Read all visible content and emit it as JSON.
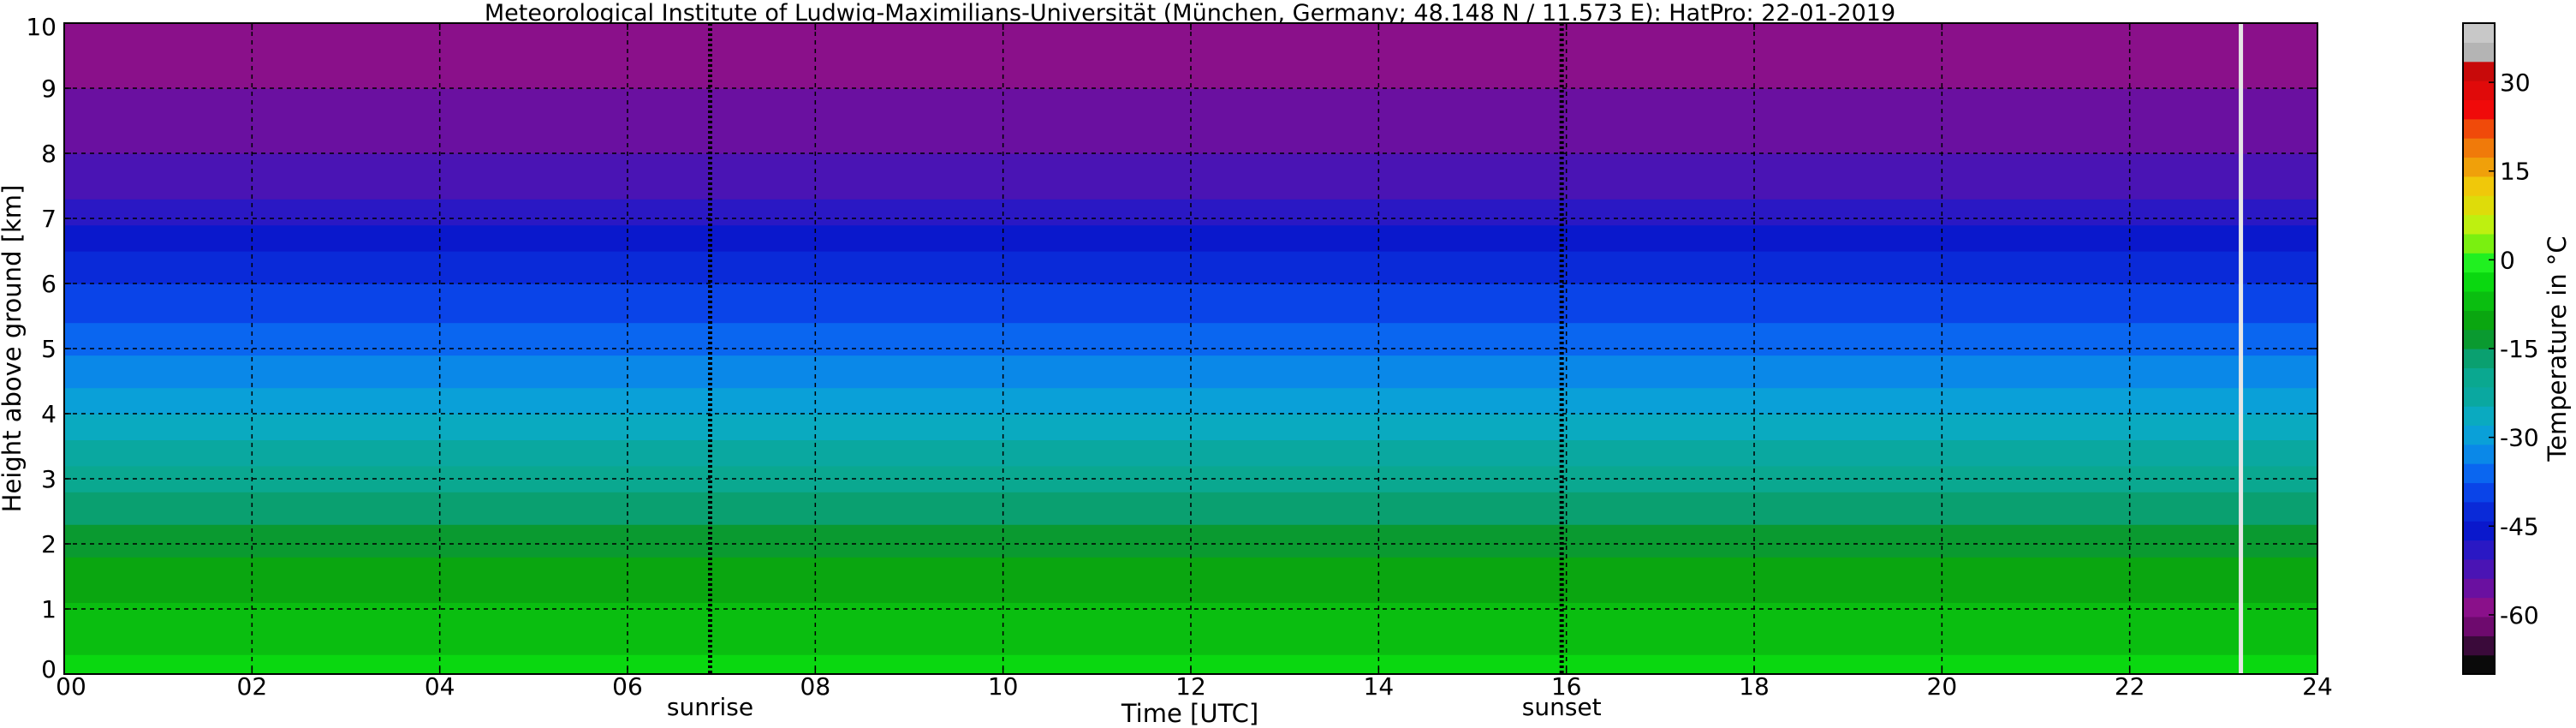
{
  "chart_data": {
    "type": "heatmap",
    "title": "Meteorological Institute of Ludwig-Maximilians-Universität (München, Germany; 48.148 N / 11.573 E):    HatPro: 22-01-2019",
    "xlabel": "Time [UTC]",
    "ylabel": "Height above ground [km]",
    "xlim": [
      0,
      24
    ],
    "ylim": [
      0,
      10
    ],
    "x_ticks": [
      "00",
      "02",
      "04",
      "06",
      "08",
      "10",
      "12",
      "14",
      "16",
      "18",
      "20",
      "22",
      "24"
    ],
    "x_tick_values": [
      0,
      2,
      4,
      6,
      8,
      10,
      12,
      14,
      16,
      18,
      20,
      22,
      24
    ],
    "y_ticks": [
      "0",
      "1",
      "2",
      "3",
      "4",
      "5",
      "6",
      "7",
      "8",
      "9",
      "10"
    ],
    "y_tick_values": [
      0,
      1,
      2,
      3,
      4,
      5,
      6,
      7,
      8,
      9,
      10
    ],
    "grid": true,
    "annotations": [
      {
        "label": "sunrise",
        "x": 6.88
      },
      {
        "label": "sunset",
        "x": 15.95
      }
    ],
    "data_gap": {
      "x": 23.18
    },
    "temperature_profile": {
      "heights_km": [
        0,
        0.5,
        1,
        1.5,
        2,
        2.5,
        3,
        3.5,
        4,
        4.5,
        5,
        5.5,
        6,
        6.5,
        7,
        7.5,
        8,
        8.5,
        9,
        9.5,
        10
      ],
      "temperature_c": [
        -4,
        -6,
        -8,
        -10,
        -13,
        -16,
        -20,
        -24,
        -28,
        -32,
        -35,
        -38,
        -41,
        -44,
        -48,
        -52,
        -54,
        -56,
        -57,
        -58,
        -59
      ]
    },
    "colorbar": {
      "label": "Temperature in °C",
      "range": [
        -70,
        40
      ],
      "ticks": [
        "30",
        "15",
        "0",
        "-15",
        "-30",
        "-45",
        "-60"
      ],
      "tick_values": [
        30,
        15,
        0,
        -15,
        -30,
        -45,
        -60
      ],
      "colors": [
        "#0a0a0a",
        "#3a0a3a",
        "#6e0a6e",
        "#8a108a",
        "#6a10a0",
        "#4a14b4",
        "#2a18c4",
        "#0a18cc",
        "#0a2ad8",
        "#0a44e8",
        "#0a66f0",
        "#0a88e8",
        "#0aa0d8",
        "#0aaac0",
        "#0aa8a0",
        "#0aa890",
        "#0aa070",
        "#0a9a30",
        "#0aa610",
        "#0abe10",
        "#0ad810",
        "#20f020",
        "#7af010",
        "#bef010",
        "#dedc0a",
        "#f0c80a",
        "#f0a00a",
        "#f07a0a",
        "#f04a0a",
        "#f00a0a",
        "#e00a0a",
        "#c80a0a",
        "#b4b4b4",
        "#c8c8c8"
      ]
    }
  }
}
